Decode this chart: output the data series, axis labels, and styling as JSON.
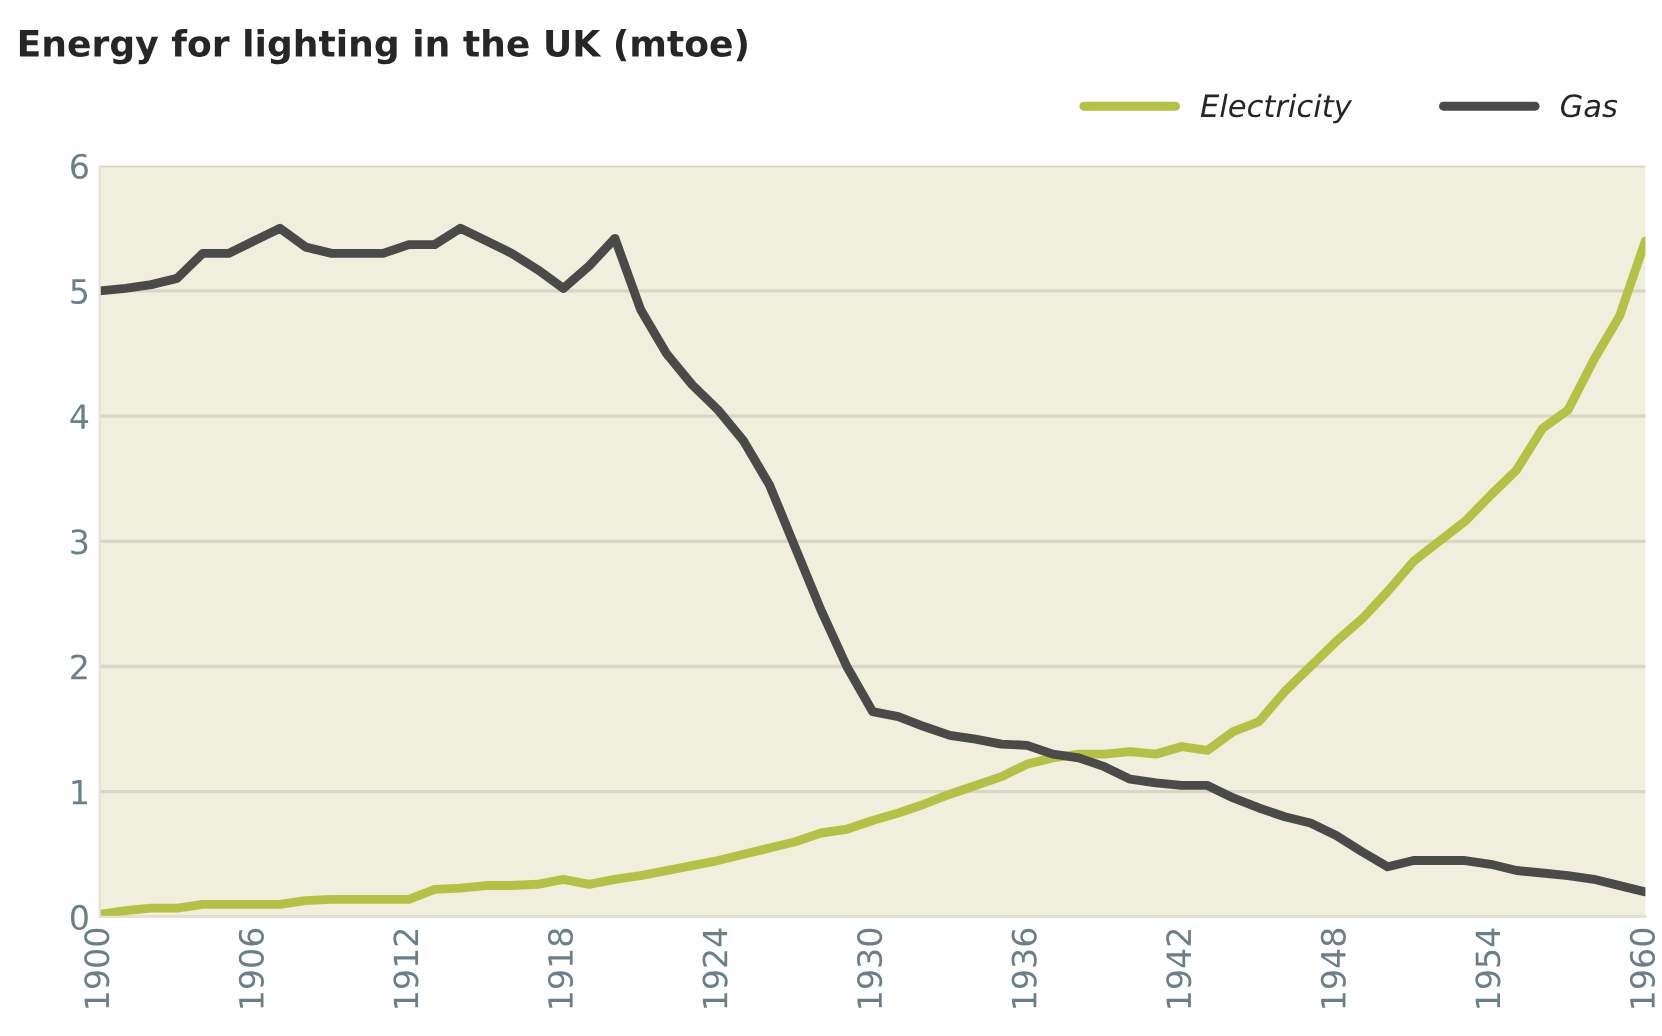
{
  "chart_data": {
    "type": "line",
    "title": "Energy for lighting in the UK (mtoe)",
    "x": [
      1900,
      1901,
      1902,
      1903,
      1904,
      1905,
      1906,
      1907,
      1908,
      1909,
      1910,
      1911,
      1912,
      1913,
      1914,
      1915,
      1916,
      1917,
      1918,
      1919,
      1920,
      1921,
      1922,
      1923,
      1924,
      1925,
      1926,
      1927,
      1928,
      1929,
      1930,
      1931,
      1932,
      1933,
      1934,
      1935,
      1936,
      1937,
      1938,
      1939,
      1940,
      1941,
      1942,
      1943,
      1944,
      1945,
      1946,
      1947,
      1948,
      1949,
      1950,
      1951,
      1952,
      1953,
      1954,
      1955,
      1956,
      1957,
      1958,
      1959,
      1960
    ],
    "series": [
      {
        "name": "Electricity",
        "color": "#b3c145",
        "values": [
          0.02,
          0.05,
          0.07,
          0.07,
          0.1,
          0.1,
          0.1,
          0.1,
          0.13,
          0.14,
          0.14,
          0.14,
          0.14,
          0.22,
          0.23,
          0.25,
          0.25,
          0.26,
          0.3,
          0.26,
          0.3,
          0.33,
          0.37,
          0.41,
          0.45,
          0.5,
          0.55,
          0.6,
          0.67,
          0.7,
          0.77,
          0.83,
          0.9,
          0.98,
          1.05,
          1.12,
          1.22,
          1.27,
          1.3,
          1.3,
          1.32,
          1.3,
          1.36,
          1.33,
          1.48,
          1.56,
          1.8,
          2.0,
          2.2,
          2.38,
          2.6,
          2.84,
          3.0,
          3.16,
          3.37,
          3.57,
          3.9,
          4.05,
          4.45,
          4.8,
          5.4
        ]
      },
      {
        "name": "Gas",
        "color": "#4a4a48",
        "values": [
          5.0,
          5.02,
          5.05,
          5.1,
          5.3,
          5.3,
          5.4,
          5.5,
          5.35,
          5.3,
          5.3,
          5.3,
          5.37,
          5.37,
          5.5,
          5.4,
          5.3,
          5.17,
          5.02,
          5.2,
          5.42,
          4.85,
          4.5,
          4.25,
          4.05,
          3.8,
          3.45,
          2.95,
          2.45,
          2.0,
          1.64,
          1.6,
          1.52,
          1.45,
          1.42,
          1.38,
          1.37,
          1.3,
          1.27,
          1.2,
          1.1,
          1.07,
          1.05,
          1.05,
          0.95,
          0.87,
          0.8,
          0.75,
          0.65,
          0.52,
          0.4,
          0.45,
          0.45,
          0.45,
          0.42,
          0.37,
          0.35,
          0.33,
          0.3,
          0.25,
          0.2
        ]
      }
    ],
    "xlim": [
      1900,
      1960
    ],
    "ylim": [
      0,
      6
    ],
    "xticks": [
      1900,
      1906,
      1912,
      1918,
      1924,
      1930,
      1936,
      1942,
      1948,
      1954,
      1960
    ],
    "yticks": [
      0,
      1,
      2,
      3,
      4,
      5,
      6
    ],
    "grid": "y",
    "legend": "top right",
    "marker": "none",
    "line_style": "solid"
  }
}
